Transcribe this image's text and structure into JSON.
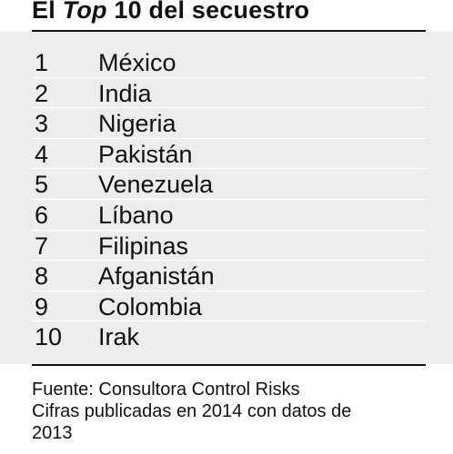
{
  "chart_data": {
    "type": "table",
    "title_parts": [
      "El ",
      "Top",
      " 10 del secuestro"
    ],
    "rows": [
      {
        "rank": "1",
        "country": "México"
      },
      {
        "rank": "2",
        "country": "India"
      },
      {
        "rank": "3",
        "country": "Nigeria"
      },
      {
        "rank": "4",
        "country": "Pakistán"
      },
      {
        "rank": "5",
        "country": "Venezuela"
      },
      {
        "rank": "6",
        "country": "Líbano"
      },
      {
        "rank": "7",
        "country": "Filipinas"
      },
      {
        "rank": "8",
        "country": "Afganistán"
      },
      {
        "rank": "9",
        "country": "Colombia"
      },
      {
        "rank": "10",
        "country": "Irak"
      }
    ],
    "source_lines": [
      "Fuente: Consultora Control Risks",
      "Cifras publicadas en 2014 con datos de",
      "2013"
    ]
  },
  "colors": {
    "table_background": "#ededed",
    "text": "#111111",
    "rule": "#111111"
  }
}
